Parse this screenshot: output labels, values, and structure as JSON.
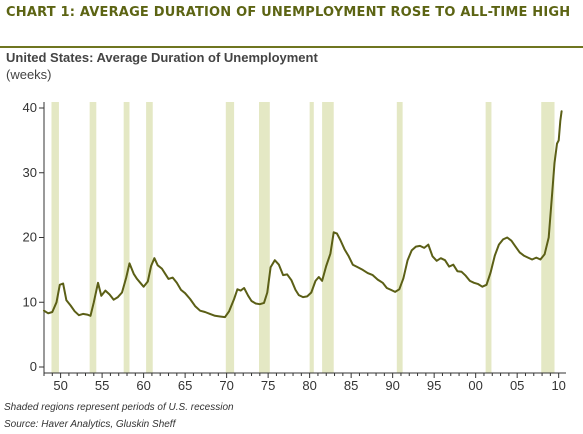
{
  "header": {
    "title": "CHART 1: AVERAGE DURATION OF UNEMPLOYMENT ROSE TO ALL-TIME HIGH",
    "subtitle": "United States: Average Duration of Unemployment",
    "units": "(weeks)"
  },
  "footer": {
    "note": "Shaded regions represent periods of U.S. recession",
    "source": "Source: Haver Analytics, Gluskin Sheff"
  },
  "colors": {
    "line": "#5b5f16",
    "recession": "#e4e8c4",
    "axis": "#333333",
    "title": "#5c6413"
  },
  "chart_data": {
    "type": "line",
    "title": "United States: Average Duration of Unemployment",
    "ylabel": "(weeks)",
    "xlabel": "",
    "xlim": [
      1948,
      2010.4
    ],
    "ylim": [
      0,
      40
    ],
    "yticks": [
      0,
      10,
      20,
      30,
      40
    ],
    "xticks": [
      {
        "value": 1950,
        "label": "50"
      },
      {
        "value": 1955,
        "label": "55"
      },
      {
        "value": 1960,
        "label": "60"
      },
      {
        "value": 1965,
        "label": "65"
      },
      {
        "value": 1970,
        "label": "70"
      },
      {
        "value": 1975,
        "label": "75"
      },
      {
        "value": 1980,
        "label": "80"
      },
      {
        "value": 1985,
        "label": "85"
      },
      {
        "value": 1990,
        "label": "90"
      },
      {
        "value": 1995,
        "label": "95"
      },
      {
        "value": 2000,
        "label": "00"
      },
      {
        "value": 2005,
        "label": "05"
      },
      {
        "value": 2010,
        "label": "10"
      }
    ],
    "grid": false,
    "recessions": [
      [
        1948.9,
        1949.8
      ],
      [
        1953.5,
        1954.3
      ],
      [
        1957.6,
        1958.3
      ],
      [
        1960.3,
        1961.1
      ],
      [
        1969.9,
        1970.9
      ],
      [
        1973.9,
        1975.2
      ],
      [
        1980.0,
        1980.5
      ],
      [
        1981.5,
        1982.9
      ],
      [
        1990.5,
        1991.2
      ],
      [
        2001.2,
        2001.9
      ],
      [
        2007.9,
        2009.5
      ]
    ],
    "series": [
      {
        "x": [
          1948.0,
          1948.5,
          1949.0,
          1949.5,
          1949.9,
          1950.3,
          1950.7,
          1951.2,
          1951.7,
          1952.2,
          1952.7,
          1953.2,
          1953.6,
          1954.0,
          1954.5,
          1954.9,
          1955.4,
          1955.9,
          1956.4,
          1956.9,
          1957.4,
          1957.9,
          1958.3,
          1958.8,
          1959.2,
          1959.6,
          1960.0,
          1960.5,
          1960.9,
          1961.3,
          1961.7,
          1962.2,
          1962.6,
          1963.0,
          1963.5,
          1964.0,
          1964.5,
          1965.0,
          1965.6,
          1966.2,
          1966.8,
          1967.4,
          1968.0,
          1968.6,
          1969.2,
          1969.8,
          1970.3,
          1970.9,
          1971.3,
          1971.7,
          1972.1,
          1972.6,
          1973.0,
          1973.5,
          1974.0,
          1974.5,
          1974.9,
          1975.3,
          1975.8,
          1976.3,
          1976.8,
          1977.3,
          1977.8,
          1978.3,
          1978.7,
          1979.2,
          1979.7,
          1980.2,
          1980.7,
          1981.1,
          1981.5,
          1982.0,
          1982.5,
          1982.9,
          1983.3,
          1983.7,
          1984.2,
          1984.7,
          1985.2,
          1985.8,
          1986.4,
          1987.0,
          1987.6,
          1988.2,
          1988.8,
          1989.3,
          1989.8,
          1990.3,
          1990.8,
          1991.3,
          1991.8,
          1992.3,
          1992.8,
          1993.3,
          1993.8,
          1994.3,
          1994.8,
          1995.3,
          1995.8,
          1996.3,
          1996.8,
          1997.3,
          1997.8,
          1998.3,
          1998.8,
          1999.3,
          1999.8,
          2000.3,
          2000.8,
          2001.3,
          2001.8,
          2002.3,
          2002.8,
          2003.3,
          2003.8,
          2004.3,
          2004.8,
          2005.3,
          2005.8,
          2006.3,
          2006.8,
          2007.3,
          2007.8,
          2008.3,
          2008.8,
          2009.2,
          2009.5,
          2009.8,
          2010.0,
          2010.2,
          2010.35
        ],
        "y": [
          8.7,
          8.3,
          8.5,
          10.0,
          12.7,
          12.9,
          10.3,
          9.5,
          8.6,
          8.0,
          8.2,
          8.1,
          7.9,
          10.0,
          13.0,
          11.0,
          11.8,
          11.2,
          10.4,
          10.8,
          11.5,
          13.8,
          16.0,
          14.4,
          13.6,
          13.0,
          12.4,
          13.2,
          15.6,
          16.8,
          15.7,
          15.2,
          14.4,
          13.6,
          13.8,
          13.0,
          11.9,
          11.4,
          10.5,
          9.4,
          8.7,
          8.5,
          8.2,
          7.9,
          7.8,
          7.7,
          8.6,
          10.5,
          12.0,
          11.8,
          12.2,
          11.0,
          10.2,
          9.8,
          9.7,
          9.9,
          11.5,
          15.4,
          16.5,
          15.8,
          14.2,
          14.3,
          13.4,
          11.9,
          11.1,
          10.8,
          10.9,
          11.5,
          13.3,
          13.9,
          13.3,
          15.6,
          17.5,
          20.8,
          20.6,
          19.6,
          18.2,
          17.1,
          15.8,
          15.4,
          15.0,
          14.5,
          14.2,
          13.5,
          13.0,
          12.2,
          11.9,
          11.6,
          12.0,
          13.7,
          16.5,
          18.0,
          18.6,
          18.7,
          18.4,
          18.9,
          17.1,
          16.4,
          16.8,
          16.5,
          15.5,
          15.8,
          14.8,
          14.7,
          14.1,
          13.3,
          13.0,
          12.8,
          12.4,
          12.7,
          14.6,
          17.2,
          18.9,
          19.7,
          20.0,
          19.5,
          18.6,
          17.7,
          17.2,
          16.9,
          16.6,
          16.9,
          16.6,
          17.4,
          20.0,
          26.5,
          31.5,
          34.5,
          35.0,
          38.0,
          39.5
        ]
      }
    ]
  }
}
